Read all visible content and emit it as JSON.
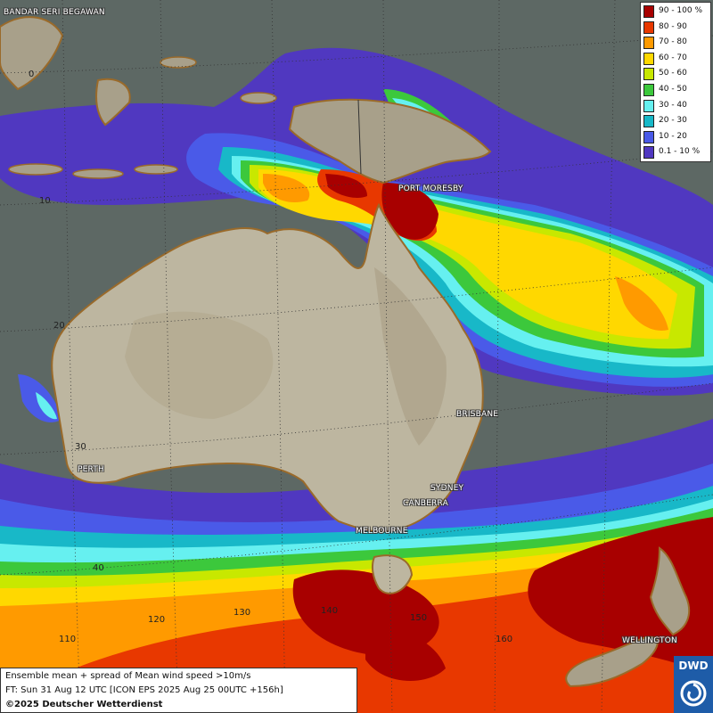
{
  "cities": {
    "bandar": "BANDAR SERI BEGAWAN",
    "port_moresby": "PORT MORESBY",
    "brisbane": "BRISBANE",
    "perth": "PERTH",
    "sydney": "SYDNEY",
    "canberra": "CANBERRA",
    "melbourne": "MELBOURNE",
    "wellington": "WELLINGTON"
  },
  "grid_labels": {
    "lat_0": "0",
    "lat_10": "10",
    "lat_20": "20",
    "lat_30": "30",
    "lat_40": "40",
    "lon_110": "110",
    "lon_120": "120",
    "lon_130": "130",
    "lon_140": "140",
    "lon_150": "150",
    "lon_160": "160"
  },
  "legend": {
    "items": [
      {
        "label": "90 - 100 %",
        "color": "#a80000"
      },
      {
        "label": "80 - 90",
        "color": "#e83800"
      },
      {
        "label": "70 - 80",
        "color": "#ff9a00"
      },
      {
        "label": "60 - 70",
        "color": "#ffd800"
      },
      {
        "label": "50 - 60",
        "color": "#c8e800"
      },
      {
        "label": "40 - 50",
        "color": "#3cc83c"
      },
      {
        "label": "30 - 40",
        "color": "#66f0f0"
      },
      {
        "label": "20 - 30",
        "color": "#18b8c8"
      },
      {
        "label": "10 - 20",
        "color": "#4a5ae8"
      },
      {
        "label": "0.1 - 10 %",
        "color": "#5038c0"
      }
    ]
  },
  "info": {
    "line1": "Ensemble mean + spread of Mean wind speed >10m/s",
    "line2": "FT: Sun 31 Aug 12 UTC [ICON EPS 2025 Aug 25 00UTC +156h]",
    "line3": "©2025 Deutscher Wetterdienst"
  },
  "logo": {
    "text": "DWD"
  }
}
